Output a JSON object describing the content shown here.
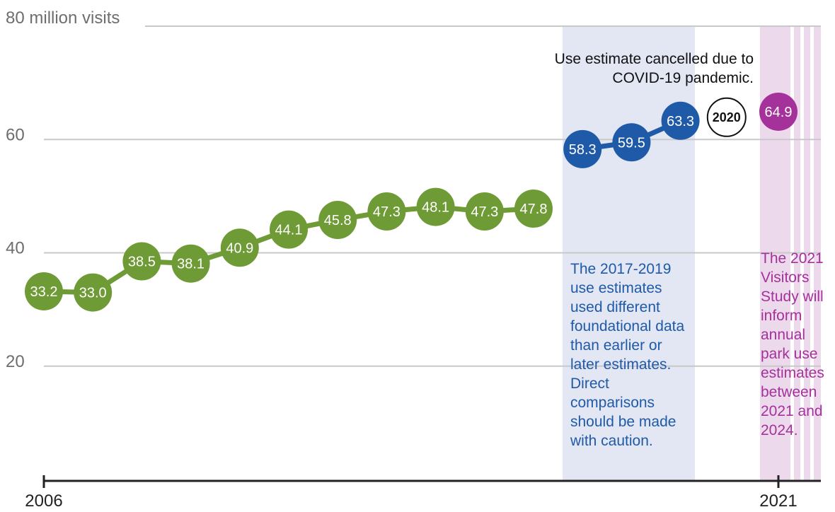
{
  "chart_data": {
    "type": "line",
    "ylabel_top": "80 million visits",
    "yticks": [
      "60",
      "40",
      "20"
    ],
    "y_values_ticks": [
      60,
      40,
      20
    ],
    "ylim": [
      0,
      80
    ],
    "xlim": [
      2006,
      2021
    ],
    "xticks": [
      "2006",
      "2021"
    ],
    "grid": true,
    "series": [
      {
        "x": [
          2006,
          2007,
          2008,
          2009,
          2010,
          2011,
          2012,
          2013,
          2014,
          2015,
          2016
        ],
        "values": [
          33.2,
          33.0,
          38.5,
          38.1,
          40.9,
          44.1,
          45.8,
          47.3,
          48.1,
          47.3,
          47.8
        ],
        "labels": [
          "33.2",
          "33.0",
          "38.5",
          "38.1",
          "40.9",
          "44.1",
          "45.8",
          "47.3",
          "48.1",
          "47.3",
          "47.8"
        ],
        "color": "#6e9b35"
      },
      {
        "x": [
          2017,
          2018,
          2019
        ],
        "values": [
          58.3,
          59.5,
          63.3
        ],
        "labels": [
          "58.3",
          "59.5",
          "63.3"
        ],
        "color": "#1f5aa8"
      },
      {
        "x": [
          2021
        ],
        "values": [
          64.9
        ],
        "labels": [
          "64.9"
        ],
        "color": "#a4329a"
      }
    ],
    "missing_year_marker": {
      "label": "2020",
      "value": 63.3
    },
    "annotations": {
      "covid": "Use estimate cancelled due to COVID-19 pandemic.",
      "blue_band": "The 2017-2019 use estimates used different foundational data than earlier or later estimates. Direct comparisons should be made with caution.",
      "purple_band": "The 2021 Visitors Study will inform annual park use estimates between 2021 and 2024."
    },
    "colors": {
      "green": "#6e9b35",
      "blue": "#1f5aa8",
      "purple": "#a4329a",
      "blue_band": "#e3e6f3",
      "purple_band": "#ecd9ec",
      "grid": "#c9c9c9"
    }
  }
}
